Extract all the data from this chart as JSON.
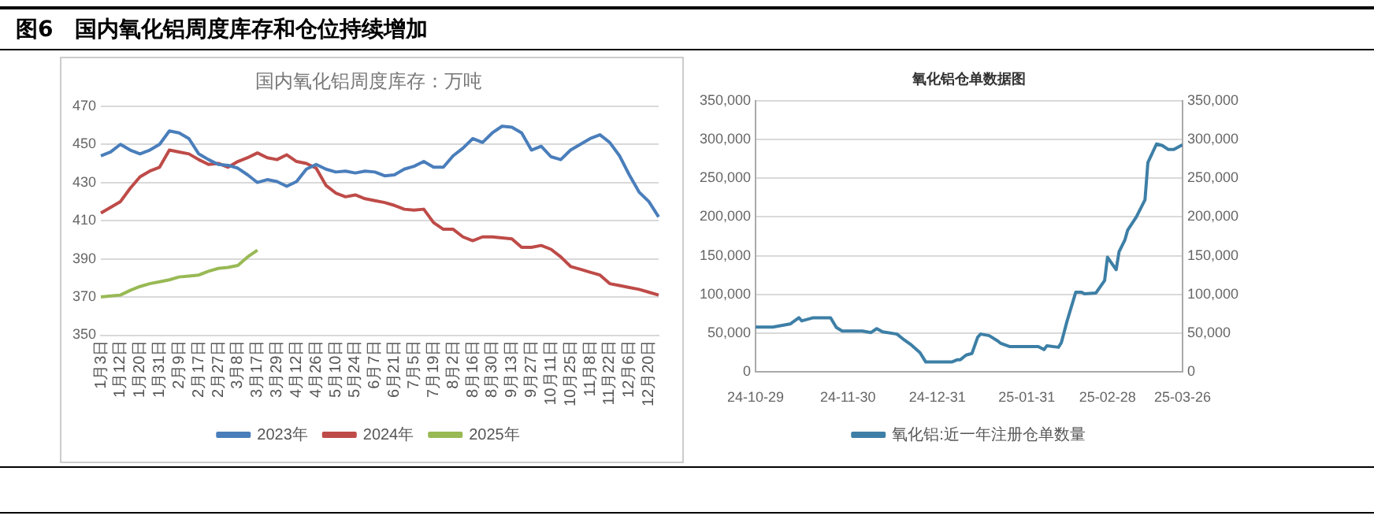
{
  "chart_data": [
    {
      "type": "line",
      "title": "国内氧化铝周度库存：万吨",
      "annotations": [
        "图6　国内氧化铝周度库存和仓位持续增加"
      ],
      "categories": [
        "1月3日",
        null,
        "1月12日",
        null,
        "1月20日",
        null,
        "1月31日",
        null,
        "2月9日",
        null,
        "2月17日",
        null,
        "2月27日",
        null,
        "3月8日",
        null,
        "3月17日",
        null,
        "3月29日",
        null,
        "4月12日",
        null,
        "4月26日",
        null,
        "5月10日",
        null,
        "5月24日",
        null,
        "6月7日",
        null,
        "6月21日",
        null,
        "7月5日",
        null,
        "7月19日",
        null,
        "8月2日",
        null,
        "8月16日",
        null,
        "8月30日",
        null,
        "9月13日",
        null,
        "9月27日",
        null,
        "10月11日",
        null,
        "10月25日",
        null,
        "11月8日",
        null,
        "11月22日",
        null,
        "12月6日",
        null,
        "12月20日",
        null
      ],
      "series": [
        {
          "name": "2023年",
          "color": "#4a7ebb",
          "values": [
            444,
            446,
            450,
            447,
            445,
            447,
            450,
            457,
            456,
            453,
            445,
            442,
            439.5,
            439,
            437.5,
            434,
            430,
            431.5,
            430.5,
            428,
            430.5,
            437,
            439.5,
            437,
            435.5,
            436,
            435,
            436,
            435.5,
            433.5,
            434,
            437,
            438.5,
            441,
            438,
            438,
            444,
            448,
            453,
            451,
            456,
            459.5,
            459,
            456,
            447,
            449,
            443.5,
            442,
            447,
            450,
            453,
            455,
            451,
            444,
            434,
            425,
            420,
            412
          ]
        },
        {
          "name": "2024年",
          "color": "#be4b48",
          "values": [
            414,
            417,
            420,
            427,
            433,
            436,
            438,
            447,
            446,
            445,
            442,
            439.5,
            440,
            438,
            441,
            443,
            445.5,
            443,
            442,
            444.5,
            441,
            440,
            437.5,
            428.5,
            424.5,
            422.5,
            423.5,
            421.5,
            420.5,
            419.5,
            418,
            416,
            415.5,
            416,
            409,
            405.5,
            405.5,
            401.5,
            399.5,
            401.5,
            401.5,
            401,
            400.5,
            396,
            396,
            397,
            395,
            391,
            386,
            384.5,
            383,
            381.5,
            377,
            376,
            375,
            374,
            372.5,
            371
          ]
        },
        {
          "name": "2025年",
          "color": "#98b954",
          "values": [
            370,
            370.5,
            371,
            373.5,
            375.5,
            377,
            378,
            379,
            380.5,
            381,
            381.5,
            383.5,
            385,
            385.5,
            386.5,
            391,
            394.5,
            null,
            null,
            null,
            null,
            null,
            null,
            null,
            null,
            null,
            null,
            null,
            null,
            null,
            null,
            null,
            null,
            null,
            null,
            null,
            null,
            null,
            null,
            null,
            null,
            null,
            null,
            null,
            null,
            null,
            null,
            null,
            null,
            null,
            null,
            null,
            null,
            null,
            null,
            null,
            null,
            null
          ]
        }
      ],
      "ylim": [
        350,
        470
      ],
      "yticks": [
        350,
        370,
        390,
        410,
        430,
        450,
        470
      ],
      "grid": "y",
      "legend": "bottom",
      "marker": "none"
    },
    {
      "type": "line",
      "title": "氧化铝仓单数据图",
      "series": [
        {
          "name": "氧化铝:近一年注册仓单数量",
          "color": "#3d7fa6",
          "axis": "y",
          "x": [
            "2024-10-29",
            "2024-11-04",
            "2024-11-10",
            "2024-11-13",
            "2024-11-14",
            "2024-11-18",
            "2024-11-24",
            "2024-11-26",
            "2024-11-28",
            "2024-12-05",
            "2024-12-08",
            "2024-12-10",
            "2024-12-12",
            "2024-12-17",
            "2024-12-19",
            "2024-12-22",
            "2024-12-25",
            "2024-12-27",
            "2025-01-04",
            "2025-01-05",
            "2025-01-07",
            "2025-01-08",
            "2025-01-10",
            "2025-01-12",
            "2025-01-14",
            "2025-01-15",
            "2025-01-18",
            "2025-01-21",
            "2025-01-22",
            "2025-01-25",
            "2025-02-04",
            "2025-02-06",
            "2025-02-07",
            "2025-02-11",
            "2025-02-12",
            "2025-02-14",
            "2025-02-17",
            "2025-02-19",
            "2025-02-20",
            "2025-02-24",
            "2025-02-27",
            "2025-02-28",
            "2025-03-03",
            "2025-03-04",
            "2025-03-06",
            "2025-03-07",
            "2025-03-10",
            "2025-03-13",
            "2025-03-14",
            "2025-03-17",
            "2025-03-19",
            "2025-03-21",
            "2025-03-23",
            "2025-03-26"
          ],
          "values": [
            58000,
            58000,
            62000,
            70000,
            66000,
            70000,
            70000,
            57500,
            53000,
            53000,
            51000,
            56000,
            52000,
            49000,
            43000,
            35000,
            25000,
            13000,
            13000,
            13000,
            16000,
            16000,
            22000,
            24000,
            45000,
            49000,
            47000,
            40000,
            37000,
            33000,
            33000,
            29000,
            34000,
            32000,
            38000,
            66000,
            103000,
            103000,
            101000,
            102000,
            118000,
            148000,
            132000,
            155000,
            170000,
            183000,
            200000,
            222000,
            270000,
            294000,
            292000,
            287000,
            287000,
            293000
          ]
        }
      ],
      "xlim": [
        "2024-10-29",
        "2025-03-26"
      ],
      "xticks": [
        {
          "value": "2024-10-29",
          "label": "24-10-29"
        },
        {
          "value": "2024-11-30",
          "label": "24-11-30"
        },
        {
          "value": "2024-12-31",
          "label": "24-12-31"
        },
        {
          "value": "2025-01-31",
          "label": "25-01-31"
        },
        {
          "value": "2025-02-28",
          "label": "25-02-28"
        },
        {
          "value": "2025-03-26",
          "label": "25-03-26"
        }
      ],
      "ylim": [
        0,
        350000
      ],
      "yticks": [
        0,
        {
          "value": 50000,
          "label": "50,000"
        },
        {
          "value": 100000,
          "label": "100,000"
        },
        {
          "value": 150000,
          "label": "150,000"
        },
        {
          "value": 200000,
          "label": "200,000"
        },
        {
          "value": 250000,
          "label": "250,000"
        },
        {
          "value": 300000,
          "label": "300,000"
        },
        {
          "value": 350000,
          "label": "350,000"
        }
      ],
      "y2lim": [
        0,
        350000
      ],
      "y2ticks": [
        0,
        {
          "value": 50000,
          "label": "50,000"
        },
        {
          "value": 100000,
          "label": "100,000"
        },
        {
          "value": 150000,
          "label": "150,000"
        },
        {
          "value": 200000,
          "label": "200,000"
        },
        {
          "value": 250000,
          "label": "250,000"
        },
        {
          "value": 300000,
          "label": "300,000"
        },
        {
          "value": 350000,
          "label": "350,000"
        }
      ],
      "grid": "y",
      "legend": "bottom",
      "marker": "none"
    }
  ]
}
